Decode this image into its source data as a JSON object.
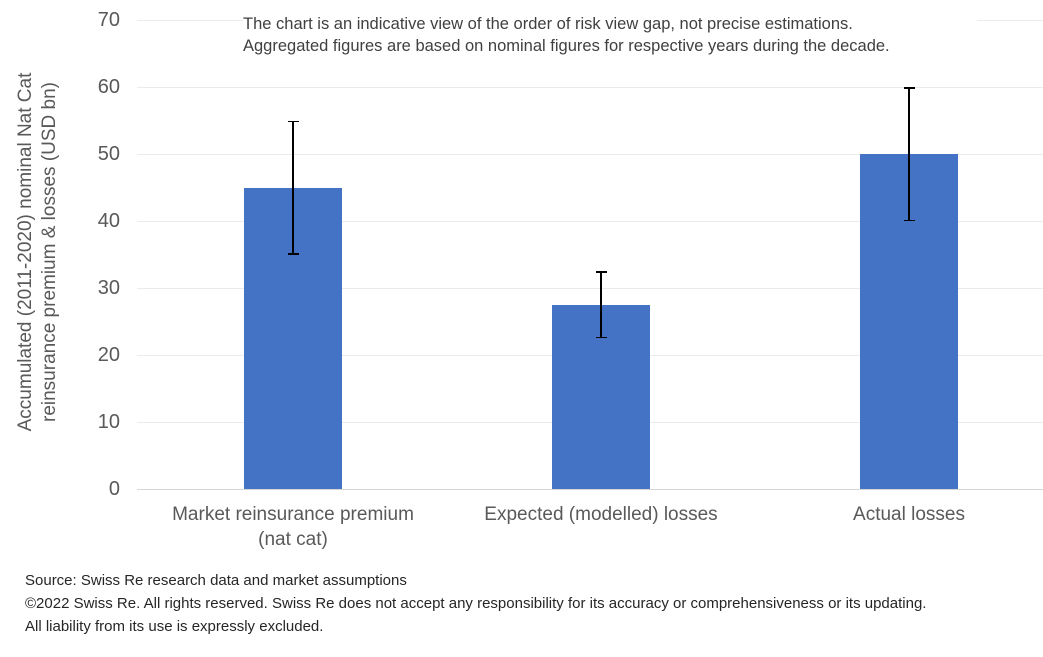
{
  "chart_data": {
    "type": "bar",
    "title": "",
    "categories": [
      "Market reinsurance premium\n(nat cat)",
      "Expected (modelled) losses",
      "Actual losses"
    ],
    "values": [
      45,
      27.5,
      50
    ],
    "error_bars": [
      {
        "low": 35,
        "high": 55
      },
      {
        "low": 22.5,
        "high": 32.5
      },
      {
        "low": 40,
        "high": 60
      }
    ],
    "ylabel": "Accumulated (2011-2020) nominal Nat Cat reinsurance premium & losses (USD bn)",
    "ylabel_line1": "Accumulated (2011-2020) nominal Nat Cat",
    "ylabel_line2": "reinsurance premium & losses (USD bn)",
    "xlabel": "",
    "ylim": [
      0,
      70
    ],
    "yticks": [
      70,
      60,
      50,
      40,
      30,
      20,
      10,
      0
    ],
    "grid": true,
    "legend": false,
    "bar_color": "#4472C4",
    "error_bar_color": "#000000"
  },
  "annotation": {
    "line1": "The chart is an indicative view of the order of risk view gap, not precise estimations.",
    "line2": "Aggregated figures are based on nominal figures for respective years during the decade."
  },
  "footer": {
    "source": "Source: Swiss Re research data and market assumptions",
    "copyright": "©2022 Swiss Re. All rights reserved. Swiss Re does not accept any responsibility for its accuracy or comprehensiveness or its updating.",
    "liability": "All liability from its use is expressly excluded."
  },
  "colors": {
    "background": "#FFFFFF",
    "bar": "#4472C4",
    "gridline": "#EBEBEB",
    "axis_line": "#D6D6D6",
    "axis_text": "#595959",
    "annotation_text": "#404040",
    "footer_text": "#262626",
    "error_bar": "#000000"
  }
}
